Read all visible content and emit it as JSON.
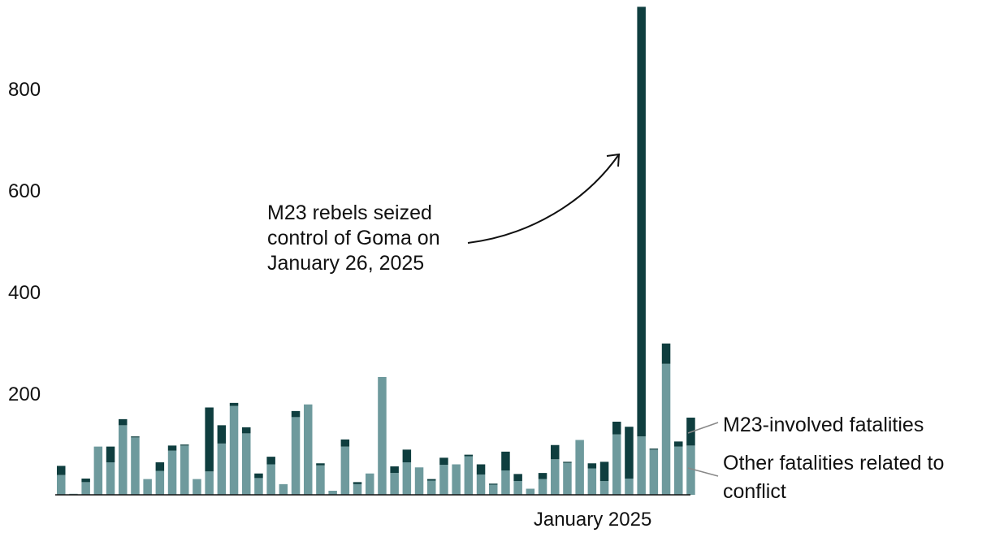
{
  "chart_data": {
    "type": "bar",
    "stacked": true,
    "ylim": [
      0,
      960
    ],
    "yticks": [
      200,
      400,
      600,
      800
    ],
    "x_tick_label": "January 2025",
    "x_tick_index": 43,
    "series": [
      {
        "name": "Other fatalities related to conflict",
        "color": "#6e9a9d",
        "values": [
          39,
          2,
          25,
          95,
          64,
          137,
          113,
          31,
          47,
          87,
          97,
          31,
          46,
          101,
          175,
          121,
          33,
          60,
          21,
          153,
          178,
          58,
          8,
          95,
          21,
          42,
          232,
          43,
          64,
          54,
          28,
          59,
          60,
          76,
          40,
          20,
          48,
          27,
          12,
          31,
          70,
          63,
          108,
          52,
          27,
          119,
          32,
          115,
          89,
          258,
          95,
          97
        ]
      },
      {
        "name": "M23-involved fatalities",
        "color": "#0f3e3f",
        "values": [
          18,
          0,
          7,
          0,
          31,
          12,
          2,
          0,
          17,
          10,
          2,
          0,
          126,
          36,
          6,
          12,
          9,
          15,
          0,
          12,
          0,
          4,
          0,
          14,
          4,
          0,
          0,
          13,
          25,
          0,
          3,
          14,
          0,
          3,
          20,
          2,
          37,
          14,
          0,
          12,
          28,
          2,
          0,
          10,
          38,
          25,
          102,
          846,
          2,
          40,
          10,
          55
        ]
      }
    ],
    "annotation": {
      "text_lines": [
        "M23 rebels seized",
        "control of Goma on",
        "January 26, 2025"
      ],
      "target_index": 47
    }
  }
}
